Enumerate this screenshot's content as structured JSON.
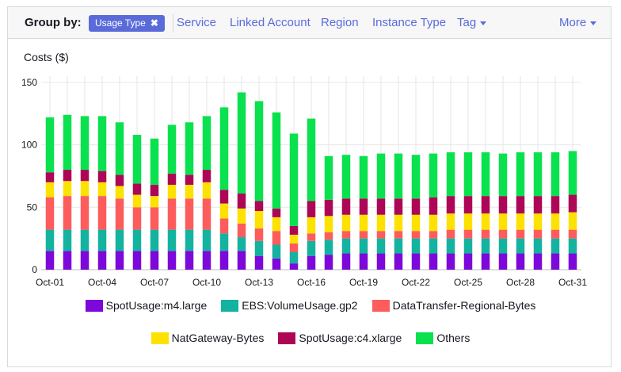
{
  "toolbar": {
    "group_by_label": "Group by:",
    "active_chip": "Usage Type",
    "chip_remove_icon": "✖",
    "options": [
      "Service",
      "Linked Account",
      "Region",
      "Instance Type",
      "Tag"
    ],
    "more_label": "More"
  },
  "chart_data": {
    "type": "bar",
    "stacked": true,
    "ylabel": "Costs ($)",
    "ylim": [
      0,
      155
    ],
    "yticks": [
      0,
      50,
      100,
      150
    ],
    "x": [
      "Oct-01",
      "Oct-02",
      "Oct-03",
      "Oct-04",
      "Oct-05",
      "Oct-06",
      "Oct-07",
      "Oct-08",
      "Oct-09",
      "Oct-10",
      "Oct-11",
      "Oct-12",
      "Oct-13",
      "Oct-14",
      "Oct-15",
      "Oct-16",
      "Oct-17",
      "Oct-18",
      "Oct-19",
      "Oct-20",
      "Oct-21",
      "Oct-22",
      "Oct-23",
      "Oct-24",
      "Oct-25",
      "Oct-26",
      "Oct-27",
      "Oct-28",
      "Oct-29",
      "Oct-30",
      "Oct-31"
    ],
    "xticks": [
      "Oct-01",
      "Oct-04",
      "Oct-07",
      "Oct-10",
      "Oct-13",
      "Oct-16",
      "Oct-19",
      "Oct-22",
      "Oct-25",
      "Oct-28",
      "Oct-31"
    ],
    "grid": true,
    "legend_position": "bottom",
    "series": [
      {
        "name": "SpotUsage:m4.large",
        "color": "#7c08d9",
        "values": [
          15,
          15,
          15,
          15,
          15,
          15,
          15,
          15,
          15,
          15,
          15,
          15,
          11,
          9,
          5,
          11,
          12,
          13,
          13,
          13,
          13,
          13,
          13,
          13,
          13,
          13,
          13,
          13,
          13,
          13,
          13
        ]
      },
      {
        "name": "EBS:VolumeUsage.gp2",
        "color": "#13b3a0",
        "values": [
          17,
          17,
          17,
          17,
          17,
          17,
          17,
          17,
          17,
          17,
          14,
          11,
          12,
          11,
          9,
          12,
          12,
          12,
          12,
          12,
          12,
          12,
          12,
          12,
          12,
          12,
          12,
          12,
          12,
          12,
          12
        ]
      },
      {
        "name": "DataTransfer-Regional-Bytes",
        "color": "#fd5c5c",
        "values": [
          26,
          27,
          27,
          27,
          25,
          18,
          18,
          25,
          25,
          25,
          12,
          11,
          10,
          11,
          7,
          6,
          6,
          6,
          6,
          6,
          6,
          6,
          6,
          7,
          7,
          7,
          7,
          7,
          7,
          7,
          7
        ]
      },
      {
        "name": "NatGateway-Bytes",
        "color": "#fde101",
        "values": [
          12,
          12,
          12,
          11,
          10,
          10,
          9,
          11,
          11,
          13,
          12,
          12,
          14,
          11,
          7,
          13,
          13,
          13,
          13,
          13,
          13,
          13,
          13,
          13,
          13,
          13,
          13,
          13,
          13,
          13,
          14
        ]
      },
      {
        "name": "SpotUsage:c4.xlarge",
        "color": "#ad0656",
        "values": [
          8,
          9,
          9,
          9,
          9,
          9,
          9,
          9,
          8,
          10,
          11,
          12,
          8,
          7,
          7,
          13,
          13,
          13,
          13,
          13,
          13,
          13,
          14,
          14,
          14,
          14,
          14,
          14,
          14,
          14,
          14
        ]
      },
      {
        "name": "Others",
        "color": "#0ae14e",
        "values": [
          44,
          44,
          43,
          44,
          42,
          39,
          37,
          39,
          42,
          43,
          66,
          81,
          80,
          77,
          74,
          66,
          35,
          35,
          34,
          36,
          36,
          35,
          35,
          35,
          35,
          35,
          34,
          35,
          35,
          35,
          35
        ]
      }
    ]
  }
}
